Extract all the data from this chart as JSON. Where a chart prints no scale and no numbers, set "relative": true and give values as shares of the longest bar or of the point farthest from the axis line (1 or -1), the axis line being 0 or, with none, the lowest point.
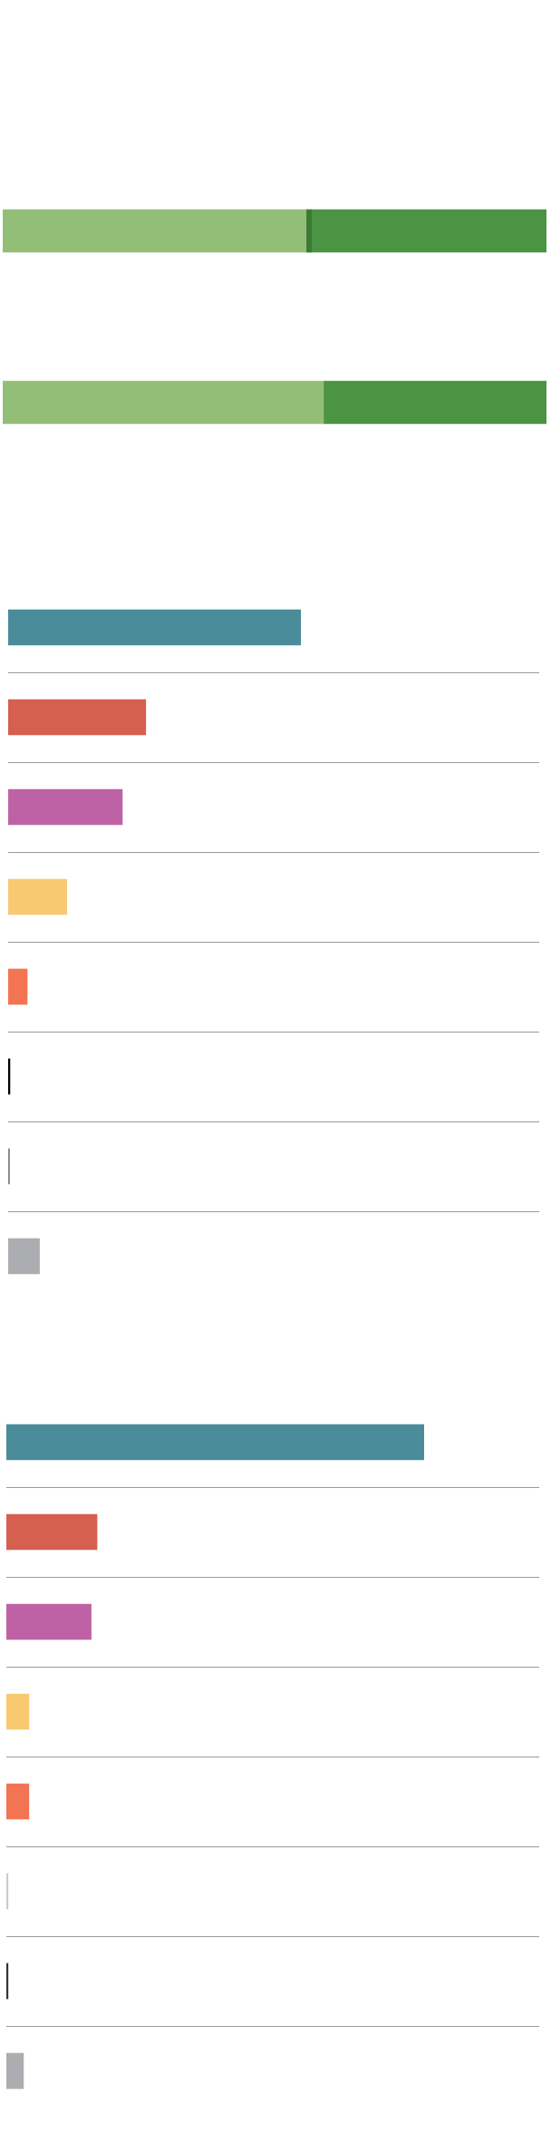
{
  "chart_data": [
    {
      "type": "bar",
      "orientation": "horizontal",
      "stacked": true,
      "relative": true,
      "categories": [
        null
      ],
      "series": [
        {
          "color": "#93be78",
          "values": [
            0.558
          ]
        },
        {
          "color": "#3b7a35",
          "values": [
            0.01
          ]
        },
        {
          "color": "#4a9443",
          "values": [
            0.432
          ]
        }
      ]
    },
    {
      "type": "bar",
      "orientation": "horizontal",
      "stacked": true,
      "relative": true,
      "categories": [
        null
      ],
      "series": [
        {
          "color": "#93be78",
          "values": [
            0.59
          ]
        },
        {
          "color": "#4a9443",
          "values": [
            0.41
          ]
        }
      ]
    },
    {
      "type": "bar",
      "orientation": "horizontal",
      "relative": true,
      "categories": [
        null,
        null,
        null,
        null,
        null,
        null,
        null,
        null
      ],
      "values": [
        1,
        0.47,
        0.39,
        0.2,
        0.065,
        0.006,
        0.005,
        0.107
      ],
      "colors": [
        "#4a8c99",
        "#d5604f",
        "#be62a5",
        "#f8c971",
        "#f37452",
        "#000000",
        "#888888",
        "#abadb0"
      ]
    },
    {
      "type": "bar",
      "orientation": "horizontal",
      "relative": true,
      "categories": [
        null,
        null,
        null,
        null,
        null,
        null,
        null,
        null
      ],
      "values": [
        1,
        0.217,
        0.203,
        0.054,
        0.054,
        0.004,
        0.004,
        0.041
      ],
      "colors": [
        "#4a8c99",
        "#d5604f",
        "#be62a5",
        "#f8c971",
        "#f37452",
        "#cccccc",
        "#333333",
        "#abadb0"
      ]
    }
  ]
}
